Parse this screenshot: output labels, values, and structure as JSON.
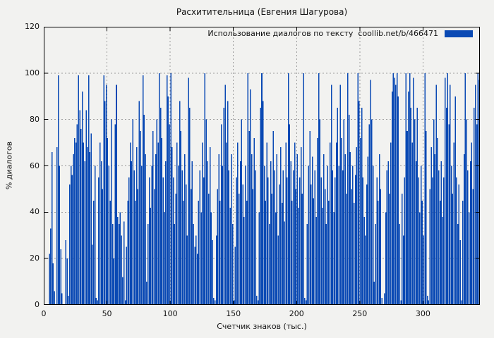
{
  "chart_data": {
    "type": "bar",
    "title": "Расхитительница (Евгения Шагурова)",
    "legend": "Использование диалогов по тексту  coollib.net/b/466471",
    "xlabel": "Счетчик знаков (тыс.)",
    "ylabel": "% диалогов",
    "xlim": [
      0,
      345
    ],
    "ylim": [
      0,
      120
    ],
    "xticks": [
      0,
      50,
      100,
      150,
      200,
      250,
      300
    ],
    "yticks": [
      0,
      20,
      40,
      60,
      80,
      100,
      120
    ],
    "grid": true,
    "legend_position": "top-right-inside",
    "bar_color": "#0a49b4",
    "background_color": "#f2f2f0",
    "grid_color": "#9c9c9c",
    "x_unit": "thousand characters",
    "values": [
      0,
      0,
      0,
      0,
      22,
      33,
      66,
      18,
      6,
      0,
      68,
      99,
      60,
      24,
      5,
      0,
      0,
      28,
      20,
      4,
      52,
      60,
      56,
      65,
      72,
      70,
      78,
      99,
      84,
      76,
      92,
      70,
      62,
      84,
      68,
      99,
      66,
      74,
      26,
      45,
      60,
      3,
      2,
      55,
      70,
      62,
      50,
      99,
      88,
      95,
      72,
      60,
      45,
      80,
      35,
      20,
      78,
      95,
      38,
      35,
      40,
      30,
      12,
      36,
      2,
      25,
      45,
      55,
      70,
      62,
      80,
      58,
      45,
      68,
      50,
      88,
      75,
      60,
      99,
      82,
      65,
      10,
      35,
      55,
      42,
      60,
      75,
      50,
      65,
      80,
      70,
      100,
      85,
      72,
      55,
      40,
      62,
      99,
      90,
      78,
      100,
      68,
      55,
      35,
      48,
      70,
      60,
      88,
      75,
      58,
      45,
      65,
      52,
      30,
      98,
      85,
      50,
      62,
      35,
      25,
      30,
      22,
      45,
      58,
      40,
      70,
      55,
      100,
      80,
      62,
      48,
      68,
      40,
      28,
      3,
      2,
      30,
      50,
      65,
      45,
      78,
      60,
      85,
      95,
      70,
      88,
      58,
      42,
      65,
      35,
      2,
      25,
      55,
      70,
      48,
      62,
      80,
      52,
      38,
      60,
      45,
      100,
      75,
      93,
      65,
      50,
      72,
      58,
      4,
      2,
      40,
      85,
      100,
      88,
      60,
      45,
      70,
      55,
      35,
      62,
      48,
      75,
      58,
      40,
      65,
      30,
      52,
      68,
      44,
      58,
      36,
      70,
      55,
      100,
      78,
      62,
      45,
      58,
      70,
      50,
      65,
      42,
      55,
      68,
      48,
      100,
      3,
      2,
      35,
      60,
      75,
      52,
      64,
      46,
      58,
      38,
      72,
      100,
      80,
      55,
      42,
      65,
      50,
      35,
      60,
      45,
      70,
      95,
      58,
      40,
      55,
      70,
      85,
      60,
      95,
      72,
      58,
      80,
      65,
      48,
      100,
      82,
      66,
      50,
      60,
      44,
      56,
      68,
      100,
      88,
      72,
      85,
      55,
      38,
      30,
      52,
      64,
      78,
      97,
      80,
      60,
      10,
      35,
      55,
      45,
      65,
      50,
      3,
      0,
      5,
      40,
      58,
      62,
      48,
      70,
      92,
      100,
      98,
      95,
      100,
      90,
      35,
      2,
      48,
      30,
      55,
      100,
      75,
      92,
      100,
      85,
      70,
      98,
      80,
      62,
      85,
      55,
      40,
      60,
      45,
      30,
      100,
      75,
      4,
      2,
      50,
      68,
      55,
      80,
      65,
      95,
      72,
      58,
      45,
      62,
      38,
      55,
      98,
      85,
      100,
      78,
      95,
      60,
      48,
      70,
      90,
      55,
      35,
      52,
      28,
      2,
      45,
      65,
      100,
      80,
      58,
      40,
      62,
      70,
      50,
      85,
      95,
      78,
      100,
      97
    ]
  }
}
